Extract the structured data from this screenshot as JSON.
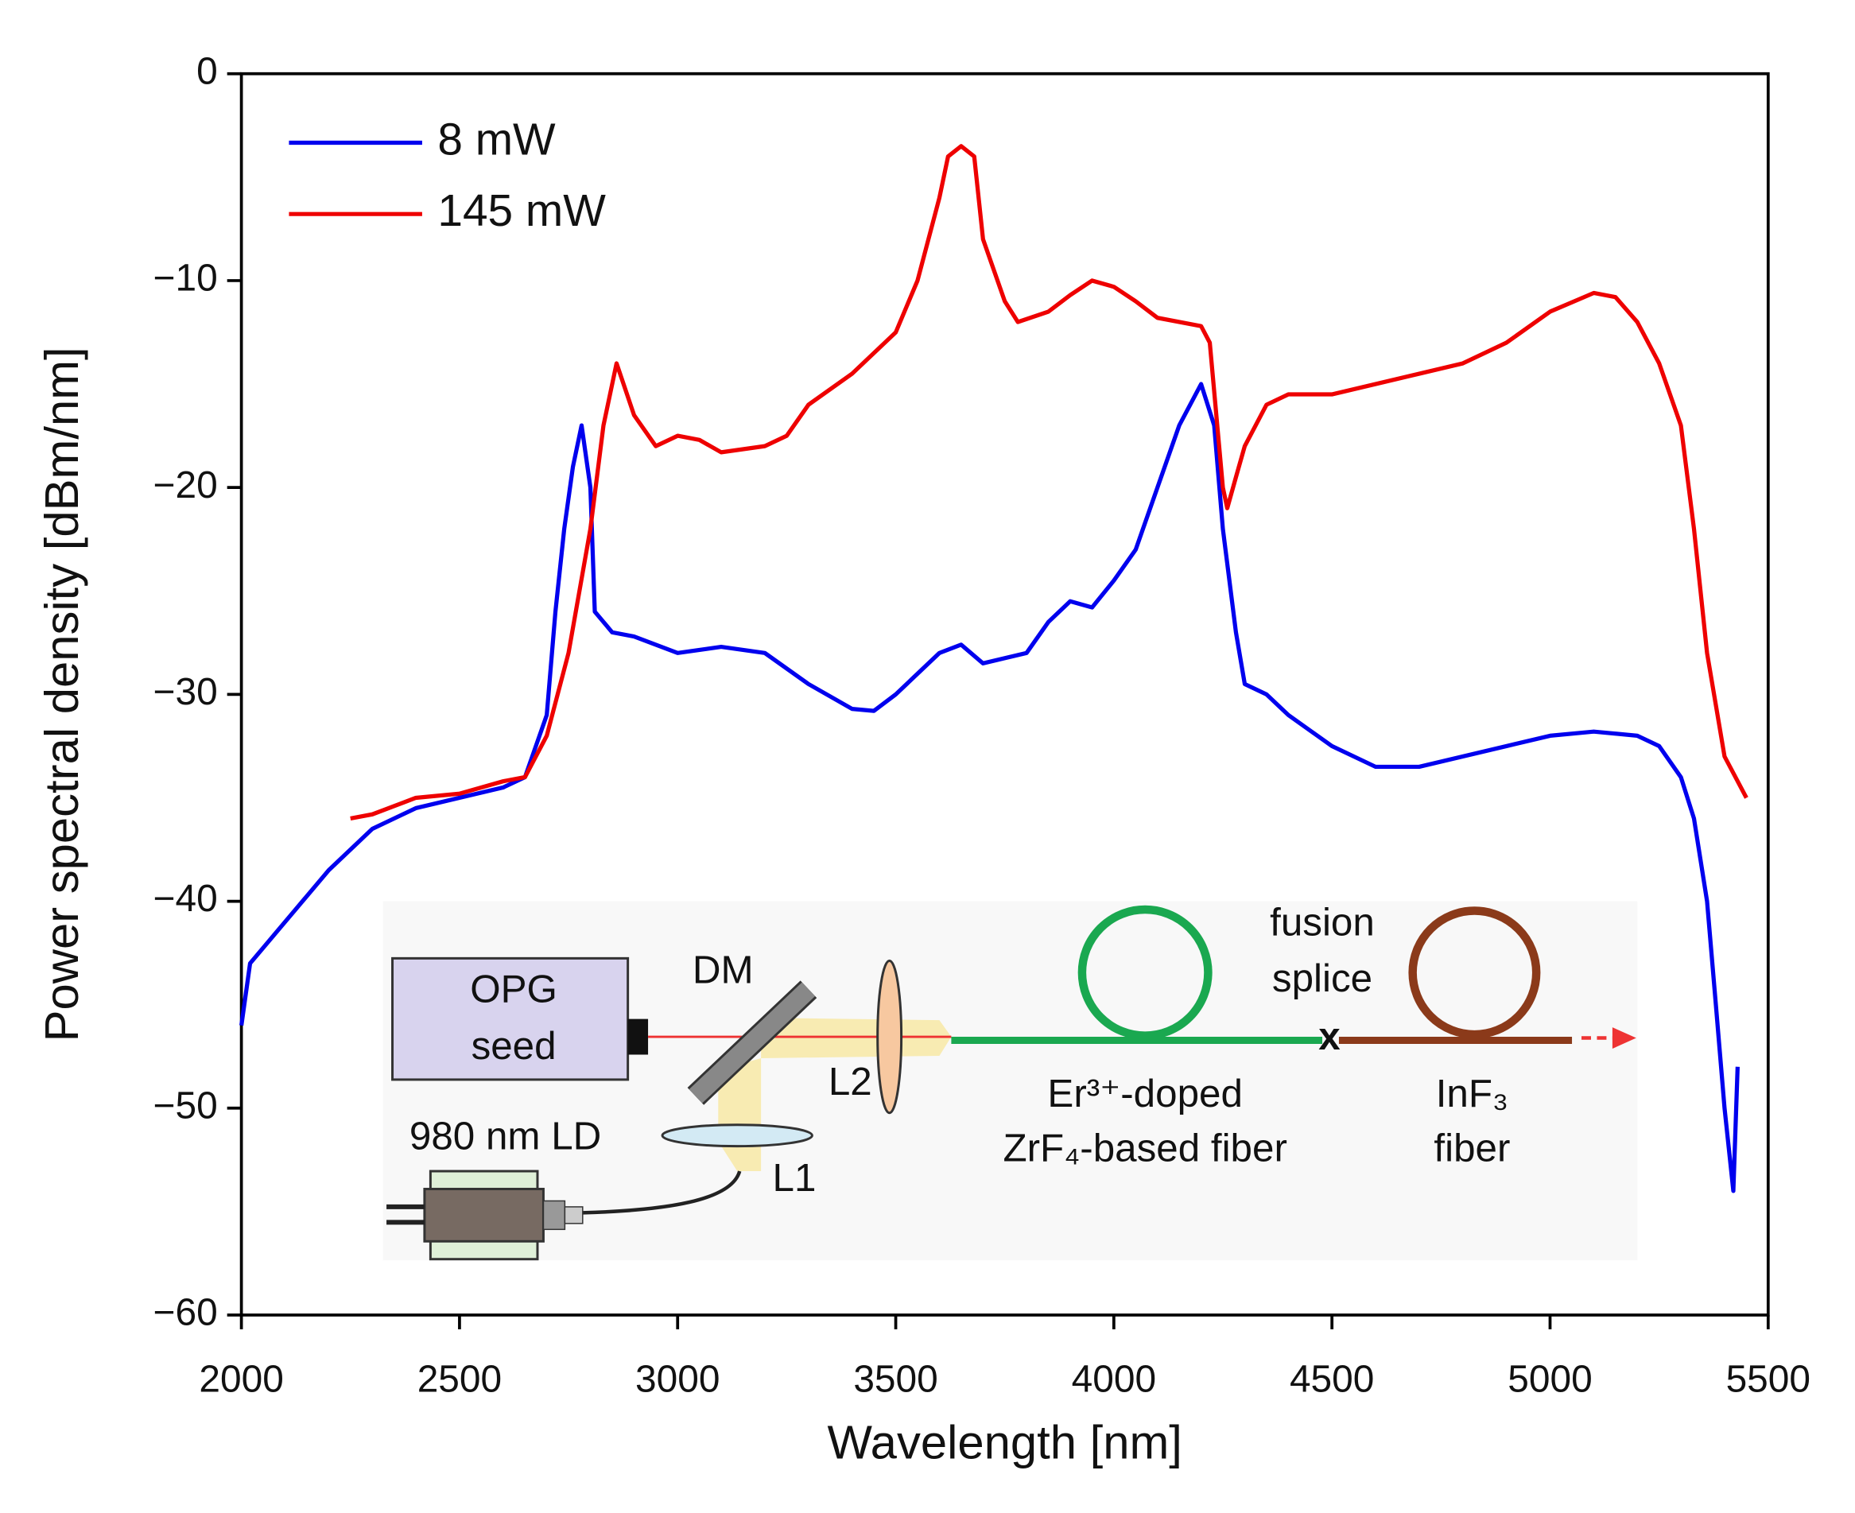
{
  "chart_data": {
    "type": "line",
    "x_label": "Wavelength [nm]",
    "y_label": "Power spectral density [dBm/nm]",
    "xlim": [
      2000,
      5500
    ],
    "xticks": [
      2000,
      2500,
      3000,
      3500,
      4000,
      4500,
      5000,
      5500
    ],
    "ylim": [
      -60,
      0
    ],
    "yticks": [
      {
        "value": -60,
        "label": "−60"
      },
      {
        "value": -50,
        "label": "−50"
      },
      {
        "value": -40,
        "label": "−40"
      },
      {
        "value": -30,
        "label": "−30"
      },
      {
        "value": -20,
        "label": "−20"
      },
      {
        "value": -10,
        "label": "−10"
      },
      0
    ],
    "legend": "upper left",
    "series": [
      {
        "name": "8 mW",
        "color": "#0000ee",
        "x": [
          2000,
          2020,
          2100,
          2200,
          2300,
          2400,
          2500,
          2600,
          2650,
          2700,
          2720,
          2740,
          2760,
          2780,
          2800,
          2810,
          2850,
          2900,
          3000,
          3100,
          3200,
          3300,
          3400,
          3450,
          3500,
          3600,
          3650,
          3700,
          3800,
          3850,
          3900,
          3950,
          4000,
          4050,
          4100,
          4150,
          4200,
          4230,
          4250,
          4280,
          4300,
          4350,
          4400,
          4500,
          4600,
          4700,
          4800,
          4900,
          5000,
          5100,
          5200,
          5250,
          5300,
          5330,
          5360,
          5380,
          5400,
          5420,
          5430
        ],
        "values": [
          -46,
          -43,
          -41,
          -38.5,
          -36.5,
          -35.5,
          -35,
          -34.5,
          -34,
          -31,
          -26,
          -22,
          -19,
          -17,
          -20,
          -26,
          -27,
          -27.2,
          -28,
          -27.7,
          -28,
          -29.5,
          -30.7,
          -30.8,
          -30,
          -28,
          -27.6,
          -28.5,
          -28,
          -26.5,
          -25.5,
          -25.8,
          -24.5,
          -23,
          -20,
          -17,
          -15,
          -17,
          -22,
          -27,
          -29.5,
          -30,
          -31,
          -32.5,
          -33.5,
          -33.5,
          -33,
          -32.5,
          -32,
          -31.8,
          -32,
          -32.5,
          -34,
          -36,
          -40,
          -45,
          -50,
          -54,
          -48
        ]
      },
      {
        "name": "145 mW",
        "color": "#ee0000",
        "x": [
          2250,
          2300,
          2400,
          2500,
          2600,
          2650,
          2700,
          2750,
          2800,
          2830,
          2860,
          2900,
          2950,
          3000,
          3050,
          3100,
          3200,
          3250,
          3300,
          3400,
          3500,
          3550,
          3600,
          3620,
          3650,
          3680,
          3700,
          3750,
          3780,
          3850,
          3900,
          3950,
          4000,
          4050,
          4100,
          4200,
          4220,
          4250,
          4260,
          4280,
          4300,
          4350,
          4400,
          4500,
          4600,
          4700,
          4800,
          4900,
          5000,
          5100,
          5150,
          5200,
          5250,
          5300,
          5330,
          5360,
          5400,
          5450
        ],
        "values": [
          -36,
          -35.8,
          -35,
          -34.8,
          -34.2,
          -34,
          -32,
          -28,
          -22,
          -17,
          -14,
          -16.5,
          -18,
          -17.5,
          -17.7,
          -18.3,
          -18,
          -17.5,
          -16,
          -14.5,
          -12.5,
          -10,
          -6,
          -4,
          -3.5,
          -4,
          -8,
          -11,
          -12,
          -11.5,
          -10.7,
          -10,
          -10.3,
          -11,
          -11.8,
          -12.2,
          -13,
          -20,
          -21,
          -19.5,
          -18,
          -16,
          -15.5,
          -15.5,
          -15,
          -14.5,
          -14,
          -13,
          -11.5,
          -10.6,
          -10.8,
          -12,
          -14,
          -17,
          -22,
          -28,
          -33,
          -35
        ]
      }
    ],
    "inset": [
      "OPG",
      "seed",
      "DM",
      "L2",
      "L1",
      "980 nm LD",
      "fusion",
      "splice",
      "x",
      "Er³⁺-doped",
      "ZrF₄-based fiber",
      "InF₃",
      "fiber"
    ]
  }
}
